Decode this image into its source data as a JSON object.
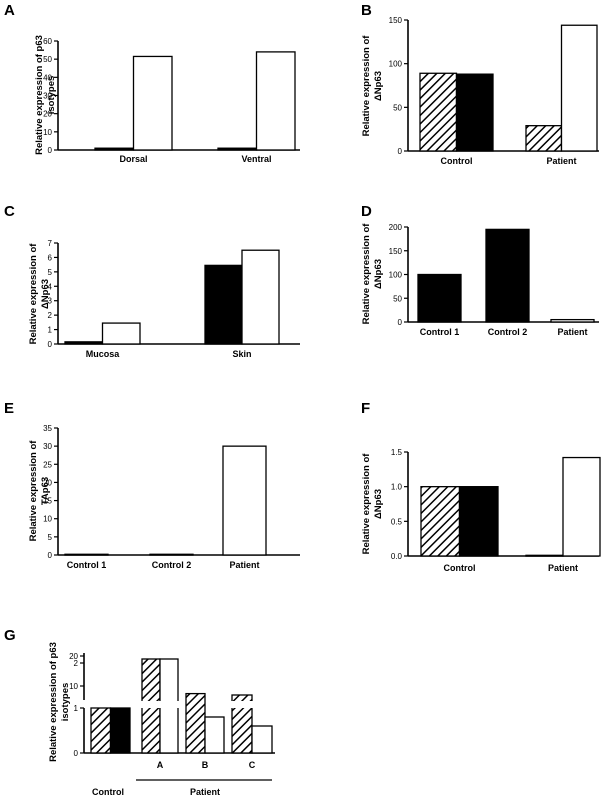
{
  "chart_data": [
    {
      "panel": "A",
      "type": "bar",
      "ylabel": "Relative expression of p63 isotypes",
      "categories": [
        "Dorsal",
        "Ventral"
      ],
      "ylim": [
        0,
        60
      ],
      "yticks": [
        0,
        10,
        20,
        30,
        40,
        50,
        60
      ],
      "series": [
        {
          "fill": "solid",
          "values": [
            1,
            1
          ]
        },
        {
          "fill": "open",
          "values": [
            51.5,
            54
          ]
        }
      ]
    },
    {
      "panel": "B",
      "type": "bar",
      "ylabel": "Relative expression of ΔNp63",
      "categories": [
        "Control",
        "Patient"
      ],
      "ylim": [
        0,
        150
      ],
      "yticks": [
        0,
        50,
        100,
        150
      ],
      "series": [
        {
          "fill": "hatched",
          "values": [
            89,
            29
          ]
        },
        {
          "fill": "solid",
          "values": [
            88,
            null
          ]
        },
        {
          "fill": "open",
          "values": [
            null,
            144
          ]
        }
      ]
    },
    {
      "panel": "C",
      "type": "bar",
      "ylabel": "Relative expression of ΔNp63",
      "categories": [
        "Mucosa",
        "Skin"
      ],
      "ylim": [
        0,
        7
      ],
      "yticks": [
        0,
        1,
        2,
        3,
        4,
        5,
        6,
        7
      ],
      "series": [
        {
          "fill": "solid",
          "values": [
            0.15,
            5.45
          ]
        },
        {
          "fill": "open",
          "values": [
            1.45,
            6.5
          ]
        }
      ]
    },
    {
      "panel": "D",
      "type": "bar",
      "ylabel": "Relative expression of ΔNp63",
      "categories": [
        "Control 1",
        "Control 2",
        "Patient"
      ],
      "ylim": [
        0,
        200
      ],
      "yticks": [
        0,
        50,
        100,
        150,
        200
      ],
      "series": [
        {
          "fill": "solid",
          "values": [
            100,
            195,
            null
          ]
        },
        {
          "fill": "open",
          "values": [
            null,
            null,
            5
          ]
        }
      ]
    },
    {
      "panel": "E",
      "type": "bar",
      "ylabel": "Relative expression of TAp63",
      "categories": [
        "Control 1",
        "Control 2",
        "Patient"
      ],
      "ylim": [
        0,
        35
      ],
      "yticks": [
        0,
        5,
        10,
        15,
        20,
        25,
        30,
        35
      ],
      "series": [
        {
          "fill": "open",
          "values": [
            0.2,
            0.2,
            30
          ]
        }
      ]
    },
    {
      "panel": "F",
      "type": "bar",
      "ylabel": "Relative expression of ΔNp63",
      "categories": [
        "Control",
        "Patient"
      ],
      "ylim": [
        0,
        1.5
      ],
      "yticks": [
        "0.0",
        "0.5",
        "1.0",
        "1.5"
      ],
      "series": [
        {
          "fill": "hatched",
          "values": [
            1.0,
            0.01
          ]
        },
        {
          "fill": "solid",
          "values": [
            1.0,
            null
          ]
        },
        {
          "fill": "open",
          "values": [
            null,
            1.42
          ]
        }
      ]
    },
    {
      "panel": "G",
      "type": "bar",
      "ylabel": "Relative expression of p63 isotypes",
      "categories": [
        "",
        "A",
        "B",
        "C"
      ],
      "group_labels": [
        "Control",
        "Patient"
      ],
      "ylim": [
        0,
        20
      ],
      "yticks_lower": [
        0,
        1,
        2
      ],
      "yticks_upper": [
        10,
        20
      ],
      "axis_break": [
        2,
        10
      ],
      "series": [
        {
          "fill": "hatched",
          "values": [
            1.0,
            19,
            1.32,
            7
          ]
        },
        {
          "fill": "solid",
          "values": [
            1.0,
            null,
            null,
            null
          ]
        },
        {
          "fill": "open",
          "values": [
            null,
            19,
            0.8,
            0.6
          ]
        }
      ]
    }
  ]
}
